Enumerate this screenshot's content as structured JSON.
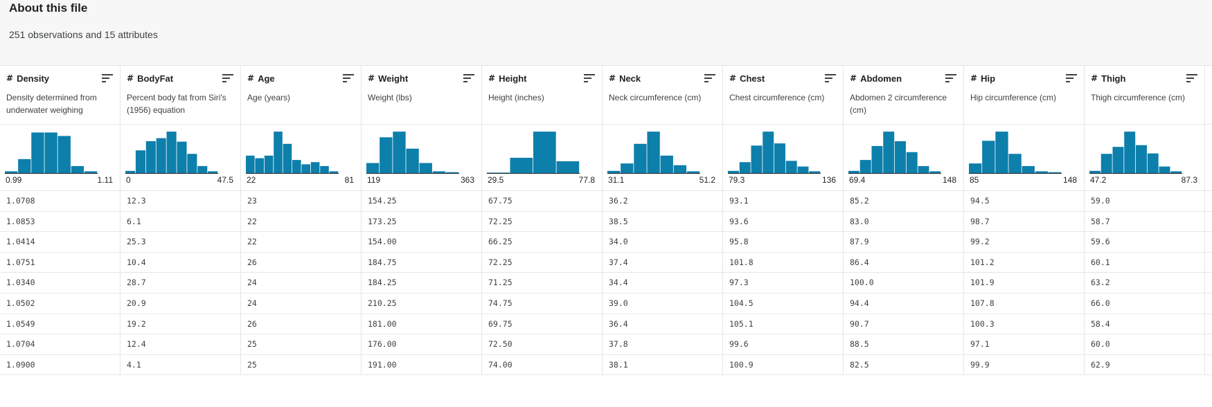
{
  "about": {
    "title": "About this file",
    "description": "251 observations and 15 attributes"
  },
  "colors": {
    "bar": "#0d7fab",
    "baseline": "#202124"
  },
  "columns": [
    {
      "name": "Density",
      "type_icon": "hash-icon",
      "description": "Density determined from underwater weighing",
      "hist": [
        0.04,
        0.32,
        0.93,
        0.93,
        0.85,
        0.16,
        0.04
      ],
      "min": "0.99",
      "max": "1.11"
    },
    {
      "name": "BodyFat",
      "type_icon": "hash-icon",
      "description": "Percent body fat from Siri's (1956) equation",
      "hist": [
        0.05,
        0.52,
        0.73,
        0.8,
        0.95,
        0.72,
        0.44,
        0.16,
        0.04
      ],
      "min": "0",
      "max": "47.5"
    },
    {
      "name": "Age",
      "type_icon": "hash-icon",
      "description": "Age (years)",
      "hist": [
        0.4,
        0.34,
        0.4,
        0.95,
        0.67,
        0.3,
        0.2,
        0.25,
        0.16,
        0.04
      ],
      "min": "22",
      "max": "81"
    },
    {
      "name": "Weight",
      "type_icon": "hash-icon",
      "description": "Weight (lbs)",
      "hist": [
        0.23,
        0.82,
        0.95,
        0.56,
        0.23,
        0.04,
        0.02
      ],
      "min": "119",
      "max": "363"
    },
    {
      "name": "Height",
      "type_icon": "hash-icon",
      "description": "Height (inches)",
      "hist": [
        0.01,
        0.35,
        0.95,
        0.27
      ],
      "min": "29.5",
      "max": "77.8"
    },
    {
      "name": "Neck",
      "type_icon": "hash-icon",
      "description": "Neck circumference (cm)",
      "hist": [
        0.05,
        0.22,
        0.67,
        0.95,
        0.4,
        0.18,
        0.04
      ],
      "min": "31.1",
      "max": "51.2"
    },
    {
      "name": "Chest",
      "type_icon": "hash-icon",
      "description": "Chest circumference (cm)",
      "hist": [
        0.05,
        0.25,
        0.63,
        0.95,
        0.68,
        0.28,
        0.15,
        0.04
      ],
      "min": "79.3",
      "max": "136"
    },
    {
      "name": "Abdomen",
      "type_icon": "hash-icon",
      "description": "Abdomen 2 circumference (cm)",
      "hist": [
        0.05,
        0.3,
        0.62,
        0.95,
        0.73,
        0.48,
        0.16,
        0.04
      ],
      "min": "69.4",
      "max": "148"
    },
    {
      "name": "Hip",
      "type_icon": "hash-icon",
      "description": "Hip circumference (cm)",
      "hist": [
        0.22,
        0.74,
        0.95,
        0.44,
        0.16,
        0.04,
        0.02
      ],
      "min": "85",
      "max": "148"
    },
    {
      "name": "Thigh",
      "type_icon": "hash-icon",
      "description": "Thigh circumference (cm)",
      "hist": [
        0.05,
        0.44,
        0.6,
        0.95,
        0.64,
        0.45,
        0.15,
        0.04
      ],
      "min": "47.2",
      "max": "87.3"
    }
  ],
  "rows": [
    [
      "1.0708",
      "12.3",
      "23",
      "154.25",
      "67.75",
      "36.2",
      "93.1",
      "85.2",
      "94.5",
      "59.0"
    ],
    [
      "1.0853",
      "6.1",
      "22",
      "173.25",
      "72.25",
      "38.5",
      "93.6",
      "83.0",
      "98.7",
      "58.7"
    ],
    [
      "1.0414",
      "25.3",
      "22",
      "154.00",
      "66.25",
      "34.0",
      "95.8",
      "87.9",
      "99.2",
      "59.6"
    ],
    [
      "1.0751",
      "10.4",
      "26",
      "184.75",
      "72.25",
      "37.4",
      "101.8",
      "86.4",
      "101.2",
      "60.1"
    ],
    [
      "1.0340",
      "28.7",
      "24",
      "184.25",
      "71.25",
      "34.4",
      "97.3",
      "100.0",
      "101.9",
      "63.2"
    ],
    [
      "1.0502",
      "20.9",
      "24",
      "210.25",
      "74.75",
      "39.0",
      "104.5",
      "94.4",
      "107.8",
      "66.0"
    ],
    [
      "1.0549",
      "19.2",
      "26",
      "181.00",
      "69.75",
      "36.4",
      "105.1",
      "90.7",
      "100.3",
      "58.4"
    ],
    [
      "1.0704",
      "12.4",
      "25",
      "176.00",
      "72.50",
      "37.8",
      "99.6",
      "88.5",
      "97.1",
      "60.0"
    ],
    [
      "1.0900",
      "4.1",
      "25",
      "191.00",
      "74.00",
      "38.1",
      "100.9",
      "82.5",
      "99.9",
      "62.9"
    ]
  ]
}
